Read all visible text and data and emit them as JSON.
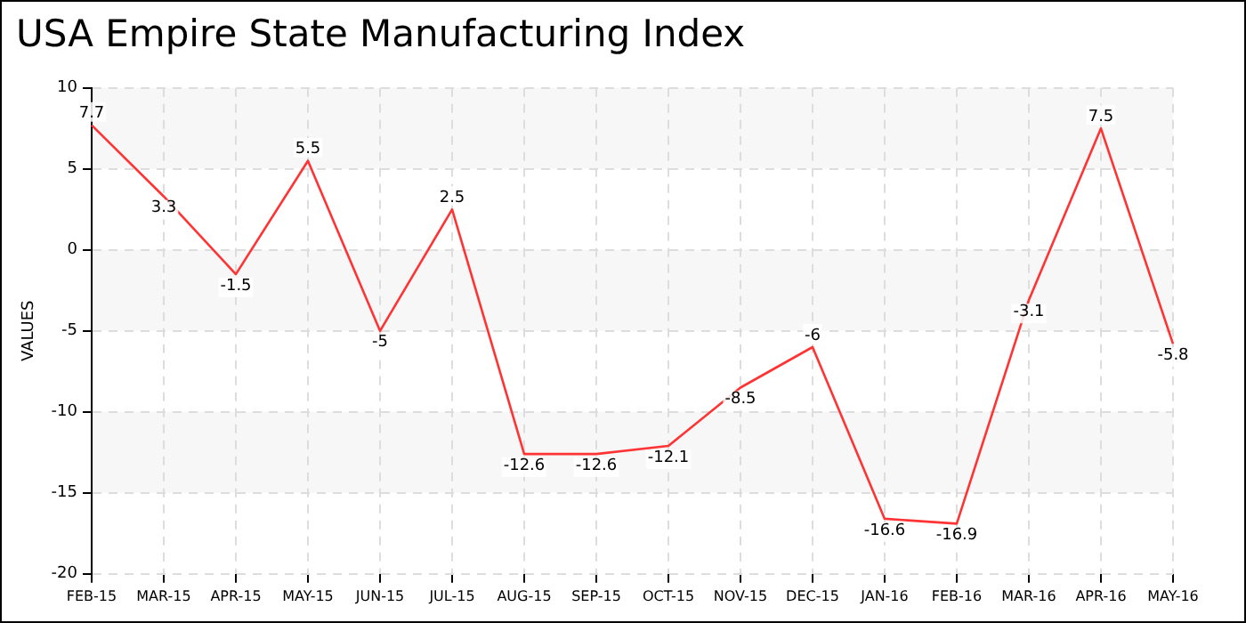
{
  "chart_data": {
    "type": "line",
    "title": "USA Empire State Manufacturing Index",
    "ylabel": "VALUES",
    "categories": [
      "FEB-15",
      "MAR-15",
      "APR-15",
      "MAY-15",
      "JUN-15",
      "JUL-15",
      "AUG-15",
      "SEP-15",
      "OCT-15",
      "NOV-15",
      "DEC-15",
      "JAN-16",
      "FEB-16",
      "MAR-16",
      "APR-16",
      "MAY-16"
    ],
    "series": [
      {
        "color": "#ff3333",
        "values": [
          7.7,
          3.3,
          -1.5,
          5.5,
          -5,
          2.5,
          -12.6,
          -12.6,
          -12.1,
          -8.5,
          -6,
          -16.6,
          -16.9,
          -3.1,
          7.5,
          -5.8
        ]
      }
    ],
    "ylim": [
      -20,
      10
    ],
    "yticks": [
      -20,
      -15,
      -10,
      -5,
      0,
      5,
      10
    ],
    "grid": true,
    "data_labels": true,
    "marker": "none",
    "line_style": "solid",
    "legend": false
  }
}
